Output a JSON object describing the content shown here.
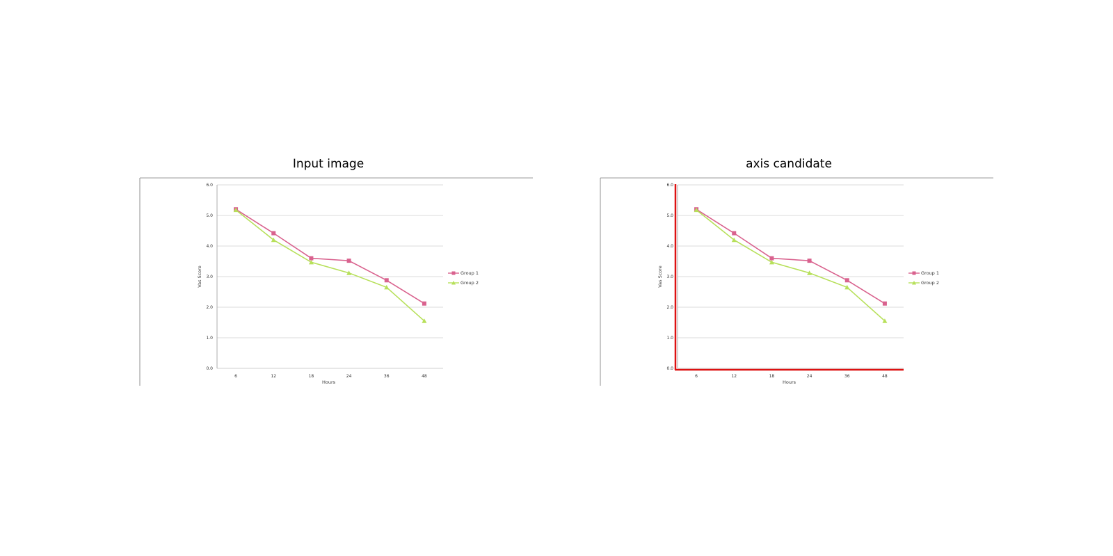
{
  "panels": [
    {
      "title": "Input image",
      "highlight_axes": false
    },
    {
      "title": "axis candidate",
      "highlight_axes": true
    }
  ],
  "colors": {
    "group1": "#d9628e",
    "group2": "#b7e05a",
    "axis_highlight": "#dd1111",
    "grid": "#cfcfcf",
    "frame": "#777777"
  },
  "chart_data": {
    "type": "line",
    "categories": [
      "6",
      "12",
      "18",
      "24",
      "36",
      "48"
    ],
    "xlabel": "Hours",
    "ylabel": "Vas Score",
    "ylim": [
      0,
      6
    ],
    "yticks": [
      "0.0",
      "1.0",
      "2.0",
      "3.0",
      "4.0",
      "5.0",
      "6.0"
    ],
    "grid": true,
    "legend_position": "right",
    "series": [
      {
        "name": "Group 1",
        "marker": "square",
        "values": [
          5.2,
          4.42,
          3.6,
          3.52,
          2.88,
          2.12
        ]
      },
      {
        "name": "Group 2",
        "marker": "triangle",
        "values": [
          5.18,
          4.2,
          3.47,
          3.12,
          2.65,
          1.55
        ]
      }
    ]
  }
}
